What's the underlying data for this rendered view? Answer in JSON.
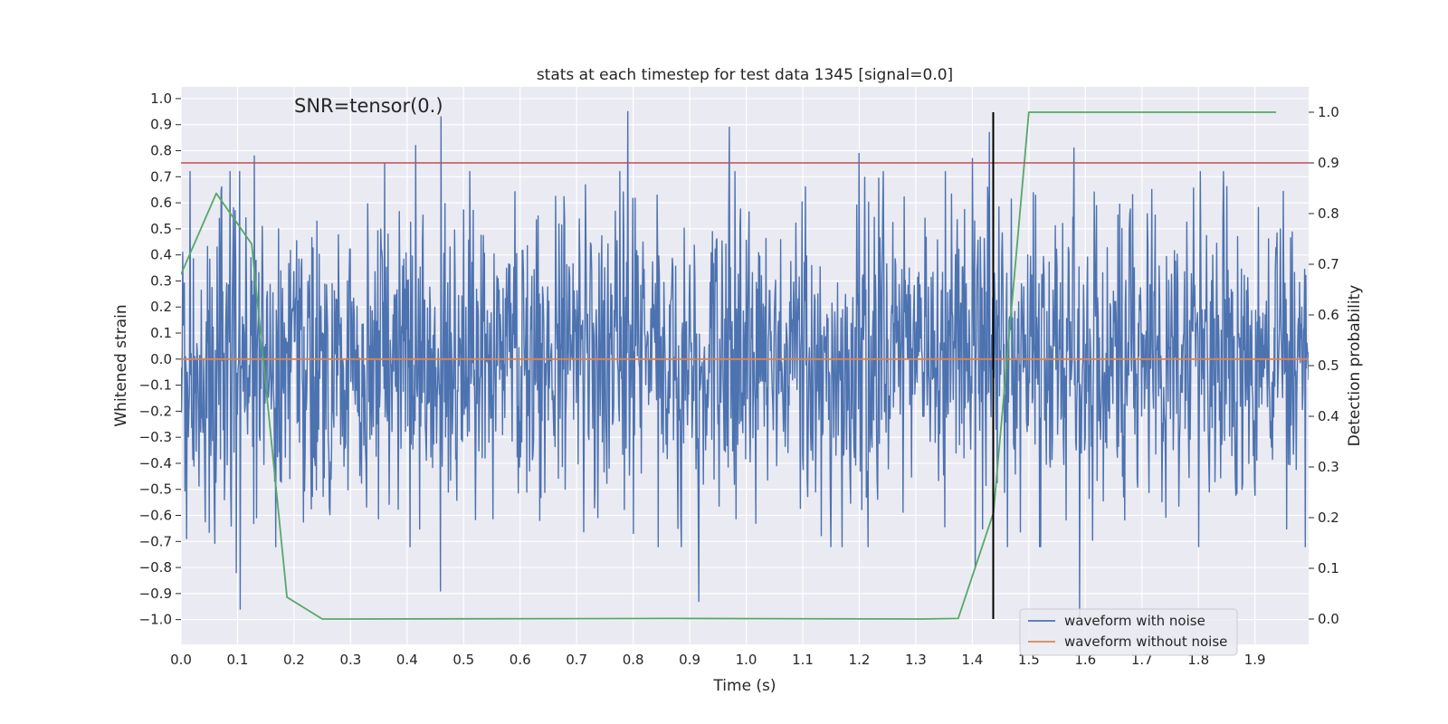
{
  "chart_data": {
    "type": "line",
    "title": "stats at each timestep for test data 1345 [signal=0.0]",
    "annotation": "SNR=tensor(0.)",
    "xlabel": "Time (s)",
    "ylabel": "Whitened strain",
    "y2label": "Detection probability",
    "xlim": [
      0.0,
      1.995
    ],
    "ylim": [
      -1.095,
      1.045
    ],
    "y2lim": [
      -0.05,
      1.05
    ],
    "x_ticks": [
      "0.0",
      "0.1",
      "0.2",
      "0.3",
      "0.4",
      "0.5",
      "0.6",
      "0.7",
      "0.8",
      "0.9",
      "1.0",
      "1.1",
      "1.2",
      "1.3",
      "1.4",
      "1.5",
      "1.6",
      "1.7",
      "1.8",
      "1.9"
    ],
    "y_ticks": [
      "1.0",
      "0.9",
      "0.8",
      "0.7",
      "0.6",
      "0.5",
      "0.4",
      "0.3",
      "0.2",
      "0.1",
      "0.0",
      "−0.1",
      "−0.2",
      "−0.3",
      "−0.4",
      "−0.5",
      "−0.6",
      "−0.7",
      "−0.8",
      "−0.9",
      "−1.0"
    ],
    "y2_ticks": [
      "1.0",
      "0.9",
      "0.8",
      "0.7",
      "0.6",
      "0.5",
      "0.4",
      "0.3",
      "0.2",
      "0.1",
      "0.0"
    ],
    "legend": {
      "placement": "lower-right",
      "entries": [
        {
          "label": "waveform with noise",
          "color": "#4c72b0"
        },
        {
          "label": "waveform without noise",
          "color": "#dd8452"
        }
      ]
    },
    "series": [
      {
        "name": "waveform with noise",
        "axis": "left",
        "color": "#4c72b0",
        "kind": "noise",
        "x_start": 0.0,
        "x_end": 1.995,
        "n_points": 2000,
        "std": 0.28,
        "peaks": [
          {
            "x": 0.13,
            "y": 0.78
          },
          {
            "x": 0.46,
            "y": 0.93
          },
          {
            "x": 0.79,
            "y": 0.95
          },
          {
            "x": 0.97,
            "y": 0.89
          },
          {
            "x": 0.415,
            "y": 0.82
          },
          {
            "x": 1.43,
            "y": 0.87
          },
          {
            "x": 1.4,
            "y": 0.77
          },
          {
            "x": 1.2,
            "y": 0.79
          },
          {
            "x": 1.58,
            "y": 0.81
          },
          {
            "x": 0.36,
            "y": 0.75
          },
          {
            "x": 0.105,
            "y": -0.96
          },
          {
            "x": 0.459,
            "y": -0.89
          },
          {
            "x": 0.916,
            "y": -0.93
          },
          {
            "x": 1.59,
            "y": -0.99
          },
          {
            "x": 1.405,
            "y": -0.8
          },
          {
            "x": 0.098,
            "y": -0.82
          },
          {
            "x": 0.168,
            "y": -0.72
          }
        ]
      },
      {
        "name": "waveform without noise",
        "axis": "left",
        "color": "#dd8452",
        "x": [
          0.0,
          1.995
        ],
        "y": [
          0.0,
          0.0
        ]
      },
      {
        "name": "detection probability",
        "axis": "right",
        "color": "#55a868",
        "x": [
          0.0,
          0.0625,
          0.125,
          0.1875,
          0.25,
          0.3125,
          0.875,
          1.3125,
          1.375,
          1.4375,
          1.5,
          1.5625,
          1.9375
        ],
        "y": [
          0.68,
          0.84,
          0.74,
          0.043,
          0.0,
          0.0,
          0.001,
          0.0,
          0.001,
          0.21,
          1.0,
          1.0,
          1.0
        ]
      }
    ],
    "threshold": {
      "axis": "right",
      "y": 0.9,
      "color": "#c44e52"
    },
    "marker_line": {
      "x": 1.437,
      "y2_range": [
        0.0,
        1.0
      ],
      "color": "#000000"
    }
  }
}
